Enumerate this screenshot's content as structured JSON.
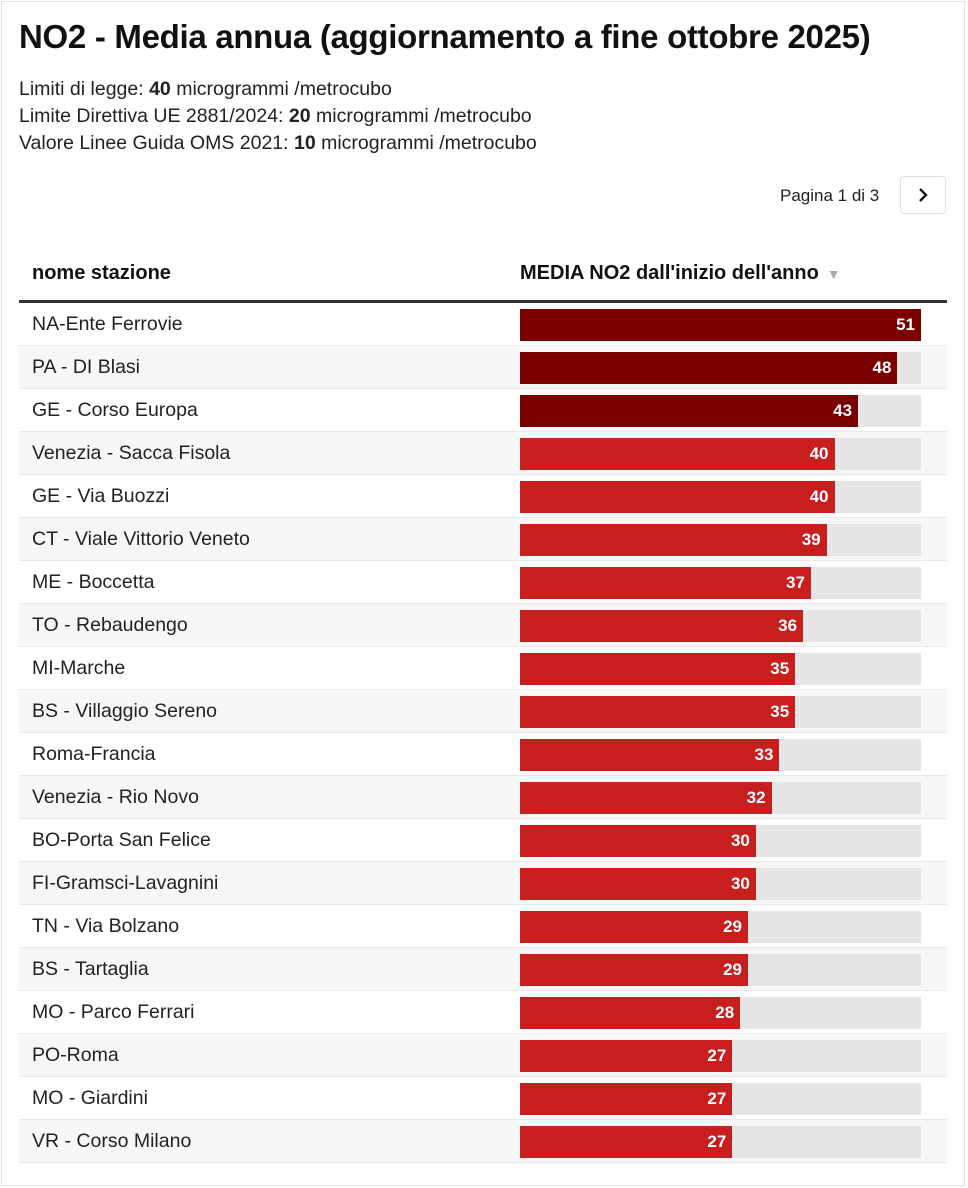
{
  "title": "NO2 - Media annua (aggiornamento a fine ottobre 2025)",
  "limits": [
    {
      "prefix": "Limiti di legge: ",
      "value": "40",
      "suffix": " microgrammi /metrocubo"
    },
    {
      "prefix": "Limite Direttiva UE 2881/2024: ",
      "value": "20",
      "suffix": " microgrammi /metrocubo"
    },
    {
      "prefix": "Valore Linee Guida OMS 2021: ",
      "value": "10",
      "suffix": " microgrammi /metrocubo"
    }
  ],
  "pagination": {
    "label": "Pagina 1 di 3",
    "next_icon": "chevron-right-icon"
  },
  "colors": {
    "above_limit": "#7a0000",
    "at_or_below_limit": "#c81e1e",
    "track": "#e6e6e6"
  },
  "chart_data": {
    "type": "table",
    "title": "NO2 - Media annua (aggiornamento a fine ottobre 2025)",
    "columns": [
      "nome stazione",
      "MEDIA NO2 dall'inizio dell'anno"
    ],
    "sort": "descending",
    "xlim": [
      0,
      51
    ],
    "categories": [
      "NA-Ente Ferrovie",
      "PA - DI Blasi",
      "GE - Corso Europa",
      "Venezia - Sacca Fisola",
      "GE - Via Buozzi",
      "CT - Viale Vittorio Veneto",
      "ME - Boccetta",
      "TO - Rebaudengo",
      "MI-Marche",
      "BS - Villaggio Sereno",
      "Roma-Francia",
      "Venezia - Rio Novo",
      "BO-Porta San Felice",
      "FI-Gramsci-Lavagnini",
      "TN - Via Bolzano",
      "BS - Tartaglia",
      "MO - Parco Ferrari",
      "PO-Roma",
      "MO - Giardini",
      "VR - Corso Milano"
    ],
    "values": [
      51,
      48,
      43,
      40,
      40,
      39,
      37,
      36,
      35,
      35,
      33,
      32,
      30,
      30,
      29,
      29,
      28,
      27,
      27,
      27
    ]
  }
}
